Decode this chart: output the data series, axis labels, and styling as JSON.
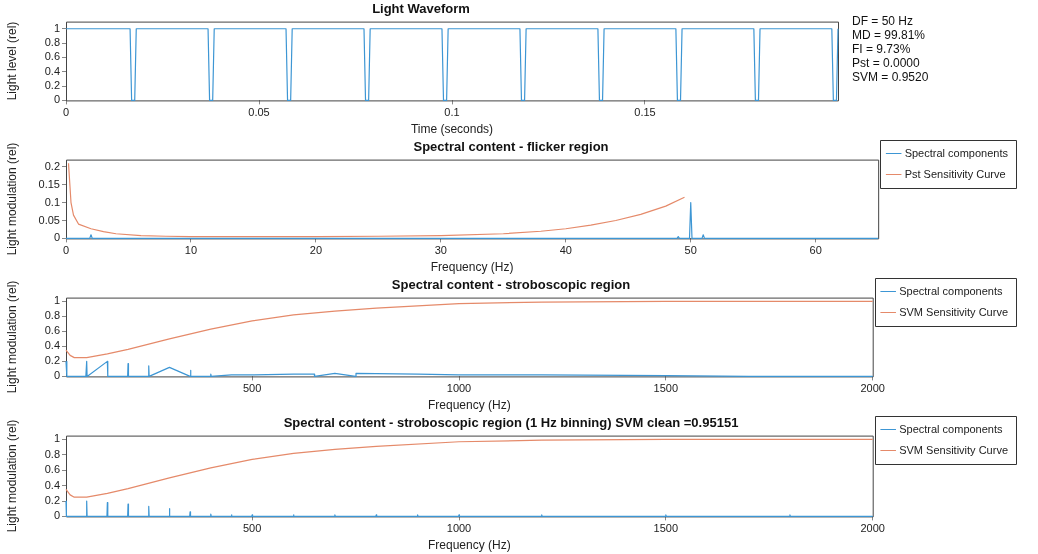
{
  "chart_data": [
    {
      "type": "line",
      "title": "Light Waveform",
      "xlabel": "Time (seconds)",
      "ylabel": "Light level (rel)",
      "xlim": [
        0,
        0.2
      ],
      "xticks": [
        0,
        0.05,
        0.1,
        0.15
      ],
      "ylim": [
        0,
        1.1
      ],
      "yticks": [
        0,
        0.2,
        0.4,
        0.6,
        0.8,
        1
      ],
      "legend": false,
      "annotations": [
        "DF = 50 Hz",
        "MD = 99.81%",
        "FI = 9.73%",
        "Pst = 0.0000",
        "SVM = 0.9520"
      ],
      "series": [
        {
          "color": "#3d96d4",
          "x": [
            0,
            0.0166,
            0.017,
            0.0178,
            0.0182,
            0.0368,
            0.0372,
            0.038,
            0.0384,
            0.057,
            0.0574,
            0.0582,
            0.0586,
            0.0772,
            0.0776,
            0.0784,
            0.0788,
            0.0974,
            0.0978,
            0.0986,
            0.099,
            0.1176,
            0.118,
            0.1188,
            0.1192,
            0.1378,
            0.1382,
            0.139,
            0.1394,
            0.158,
            0.1584,
            0.1592,
            0.1596,
            0.1782,
            0.1786,
            0.1794,
            0.1798,
            0.1984,
            0.1988,
            0.1996,
            0.2
          ],
          "values": [
            1,
            1,
            0,
            0,
            1,
            1,
            0,
            0,
            1,
            1,
            0,
            0,
            1,
            1,
            0,
            0,
            1,
            1,
            0,
            0,
            1,
            1,
            0,
            0,
            1,
            1,
            0,
            0,
            1,
            1,
            0,
            0,
            1,
            1,
            0,
            0,
            1,
            1,
            0,
            0,
            1
          ]
        }
      ]
    },
    {
      "type": "line",
      "title": "Spectral content - flicker region",
      "xlabel": "Frequency (Hz)",
      "ylabel": "Light modulation (rel)",
      "xlim": [
        0,
        65
      ],
      "xticks": [
        0,
        10,
        20,
        30,
        40,
        50,
        60
      ],
      "ylim": [
        0,
        0.22
      ],
      "yticks": [
        0,
        0.05,
        0.1,
        0.15,
        0.2
      ],
      "legend": "top right",
      "series": [
        {
          "name": "Spectral components",
          "color": "#3d96d4",
          "x": [
            0,
            1.9,
            2,
            2.1,
            48.9,
            49,
            49.1,
            49.9,
            50,
            50.1,
            50.9,
            51,
            51.1,
            65
          ],
          "values": [
            0,
            0,
            0.01,
            0,
            0,
            0.005,
            0,
            0,
            0.1,
            0,
            0,
            0.01,
            0,
            0
          ]
        },
        {
          "name": "Pst Sensitivity Curve",
          "color": "#e58a6a",
          "x": [
            0.2,
            0.4,
            0.6,
            1,
            2,
            3,
            4,
            6,
            8,
            10,
            15,
            20,
            25,
            30,
            35,
            38,
            40,
            42,
            44,
            46,
            48,
            49.5
          ],
          "values": [
            0.21,
            0.1,
            0.065,
            0.04,
            0.027,
            0.019,
            0.013,
            0.008,
            0.006,
            0.005,
            0.005,
            0.005,
            0.006,
            0.008,
            0.013,
            0.02,
            0.027,
            0.037,
            0.05,
            0.067,
            0.09,
            0.115
          ]
        }
      ]
    },
    {
      "type": "line",
      "title": "Spectral content - stroboscopic region",
      "xlabel": "Frequency (Hz)",
      "ylabel": "Light modulation (rel)",
      "xlim": [
        50,
        2000
      ],
      "xticks": [
        500,
        1000,
        1500,
        2000
      ],
      "ylim": [
        0,
        1.05
      ],
      "yticks": [
        0,
        0.2,
        0.4,
        0.6,
        0.8,
        1
      ],
      "legend": "top right",
      "series": [
        {
          "name": "Spectral components",
          "color": "#3d96d4",
          "x": [
            50,
            52,
            98,
            100,
            101,
            150,
            151,
            199,
            200,
            201,
            249,
            250,
            251,
            300,
            350,
            351,
            352,
            399,
            400,
            401,
            450,
            500,
            600,
            650,
            651,
            700,
            750,
            751,
            900,
            1000,
            1200,
            1500,
            1700,
            2000
          ],
          "values": [
            0.2,
            0,
            0,
            0.2,
            0,
            0.2,
            0,
            0,
            0.17,
            0,
            0,
            0.14,
            0,
            0.12,
            0,
            0.08,
            0,
            0,
            0.03,
            0,
            0.02,
            0.02,
            0.03,
            0.03,
            0,
            0.04,
            0,
            0.04,
            0.03,
            0.02,
            0.02,
            0.01,
            0,
            0
          ]
        },
        {
          "name": "SVM Sensitivity Curve",
          "color": "#e58a6a",
          "x": [
            50,
            60,
            70,
            100,
            150,
            200,
            300,
            400,
            500,
            600,
            700,
            800,
            1000,
            1200,
            1500,
            2000
          ],
          "values": [
            0.35,
            0.28,
            0.25,
            0.25,
            0.3,
            0.36,
            0.5,
            0.63,
            0.74,
            0.82,
            0.87,
            0.91,
            0.97,
            0.99,
            1,
            1
          ]
        }
      ]
    },
    {
      "type": "line",
      "title": "Spectral content - stroboscopic region (1 Hz binning) SVM clean =0.95151",
      "xlabel": "Frequency (Hz)",
      "ylabel": "Light modulation (rel)",
      "xlim": [
        50,
        2000
      ],
      "xticks": [
        500,
        1000,
        1500,
        2000
      ],
      "ylim": [
        0,
        1.05
      ],
      "yticks": [
        0,
        0.2,
        0.4,
        0.6,
        0.8,
        1
      ],
      "legend": "top right",
      "series": [
        {
          "name": "Spectral components",
          "color": "#3d96d4",
          "x": [
            50,
            51,
            99,
            100,
            101,
            149,
            150,
            151,
            199,
            200,
            201,
            249,
            250,
            251,
            299,
            300,
            301,
            349,
            350,
            351,
            399,
            400,
            401,
            449,
            450,
            451,
            499,
            500,
            501,
            599,
            600,
            601,
            699,
            700,
            701,
            799,
            800,
            801,
            899,
            900,
            901,
            999,
            1000,
            1001,
            1199,
            1200,
            1201,
            1499,
            1500,
            1501,
            1799,
            1800,
            1801,
            2000
          ],
          "values": [
            0.2,
            0,
            0,
            0.2,
            0,
            0,
            0.18,
            0,
            0,
            0.16,
            0,
            0,
            0.13,
            0,
            0,
            0.1,
            0,
            0,
            0.06,
            0,
            0,
            0.03,
            0,
            0,
            0.02,
            0,
            0,
            0.02,
            0,
            0,
            0.02,
            0,
            0,
            0.02,
            0,
            0,
            0.02,
            0,
            0,
            0.02,
            0,
            0,
            0.02,
            0,
            0,
            0.02,
            0,
            0,
            0.02,
            0,
            0,
            0.02,
            0,
            0
          ]
        },
        {
          "name": "SVM Sensitivity Curve",
          "color": "#e58a6a",
          "x": [
            50,
            60,
            70,
            100,
            150,
            200,
            300,
            400,
            500,
            600,
            700,
            800,
            1000,
            1200,
            1500,
            2000
          ],
          "values": [
            0.35,
            0.28,
            0.25,
            0.25,
            0.3,
            0.36,
            0.5,
            0.63,
            0.74,
            0.82,
            0.87,
            0.91,
            0.97,
            0.99,
            1,
            1
          ]
        }
      ]
    }
  ]
}
